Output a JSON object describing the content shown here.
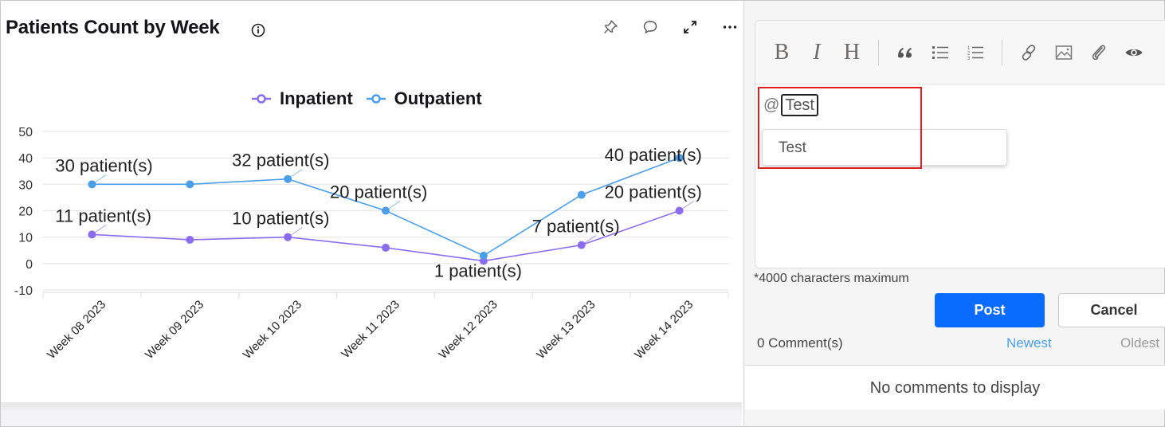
{
  "chart_card": {
    "title": "Patients Count by Week",
    "icons": [
      "info-icon",
      "pin-icon",
      "comment-icon",
      "expand-icon",
      "more-icon"
    ]
  },
  "chart_data": {
    "type": "line",
    "title": "Patients Count by Week",
    "xlabel": "",
    "ylabel": "",
    "categories": [
      "Week 08 2023",
      "Week 09 2023",
      "Week 10 2023",
      "Week 11 2023",
      "Week 12 2023",
      "Week 13 2023",
      "Week 14 2023"
    ],
    "series": [
      {
        "name": "Inpatient",
        "color": "#8b6cf0",
        "values": [
          11,
          9,
          10,
          6,
          1,
          7,
          20
        ]
      },
      {
        "name": "Outpatient",
        "color": "#4a9eea",
        "values": [
          30,
          30,
          32,
          20,
          3,
          26,
          40
        ]
      }
    ],
    "ylim": [
      -10,
      50
    ],
    "yticks": [
      50,
      40,
      30,
      20,
      10,
      0,
      -10
    ],
    "grid": true,
    "legend_position": "top",
    "annotations": [
      {
        "series": "Outpatient",
        "category": "Week 08 2023",
        "text": "30 patient(s)"
      },
      {
        "series": "Outpatient",
        "category": "Week 10 2023",
        "text": "32 patient(s)"
      },
      {
        "series": "Outpatient",
        "category": "Week 11 2023",
        "text": "20 patient(s)"
      },
      {
        "series": "Outpatient",
        "category": "Week 14 2023",
        "text": "40 patient(s)"
      },
      {
        "series": "Inpatient",
        "category": "Week 08 2023",
        "text": "11 patient(s)"
      },
      {
        "series": "Inpatient",
        "category": "Week 10 2023",
        "text": "10 patient(s)"
      },
      {
        "series": "Inpatient",
        "category": "Week 12 2023",
        "text": "1 patient(s)"
      },
      {
        "series": "Inpatient",
        "category": "Week 13 2023",
        "text": "7 patient(s)"
      },
      {
        "series": "Inpatient",
        "category": "Week 14 2023",
        "text": "20 patient(s)"
      }
    ]
  },
  "comments_panel": {
    "toolbar": {
      "bold": "B",
      "italic": "I",
      "heading": "H",
      "items": [
        "bold",
        "italic",
        "heading",
        "quote",
        "bulleted-list",
        "numbered-list",
        "link",
        "image",
        "attachment",
        "preview"
      ]
    },
    "editor": {
      "at_symbol": "@",
      "mention_text": "Test",
      "suggestions": [
        "Test"
      ]
    },
    "char_limit": "*4000 characters maximum",
    "post_label": "Post",
    "cancel_label": "Cancel",
    "comment_count": "0 Comment(s)",
    "sort_newest": "Newest",
    "sort_oldest": "Oldest",
    "empty_message": "No comments to display",
    "colors": {
      "primary": "#0a6cff",
      "link": "#4a9eea",
      "highlight": "#e01e1e"
    }
  }
}
